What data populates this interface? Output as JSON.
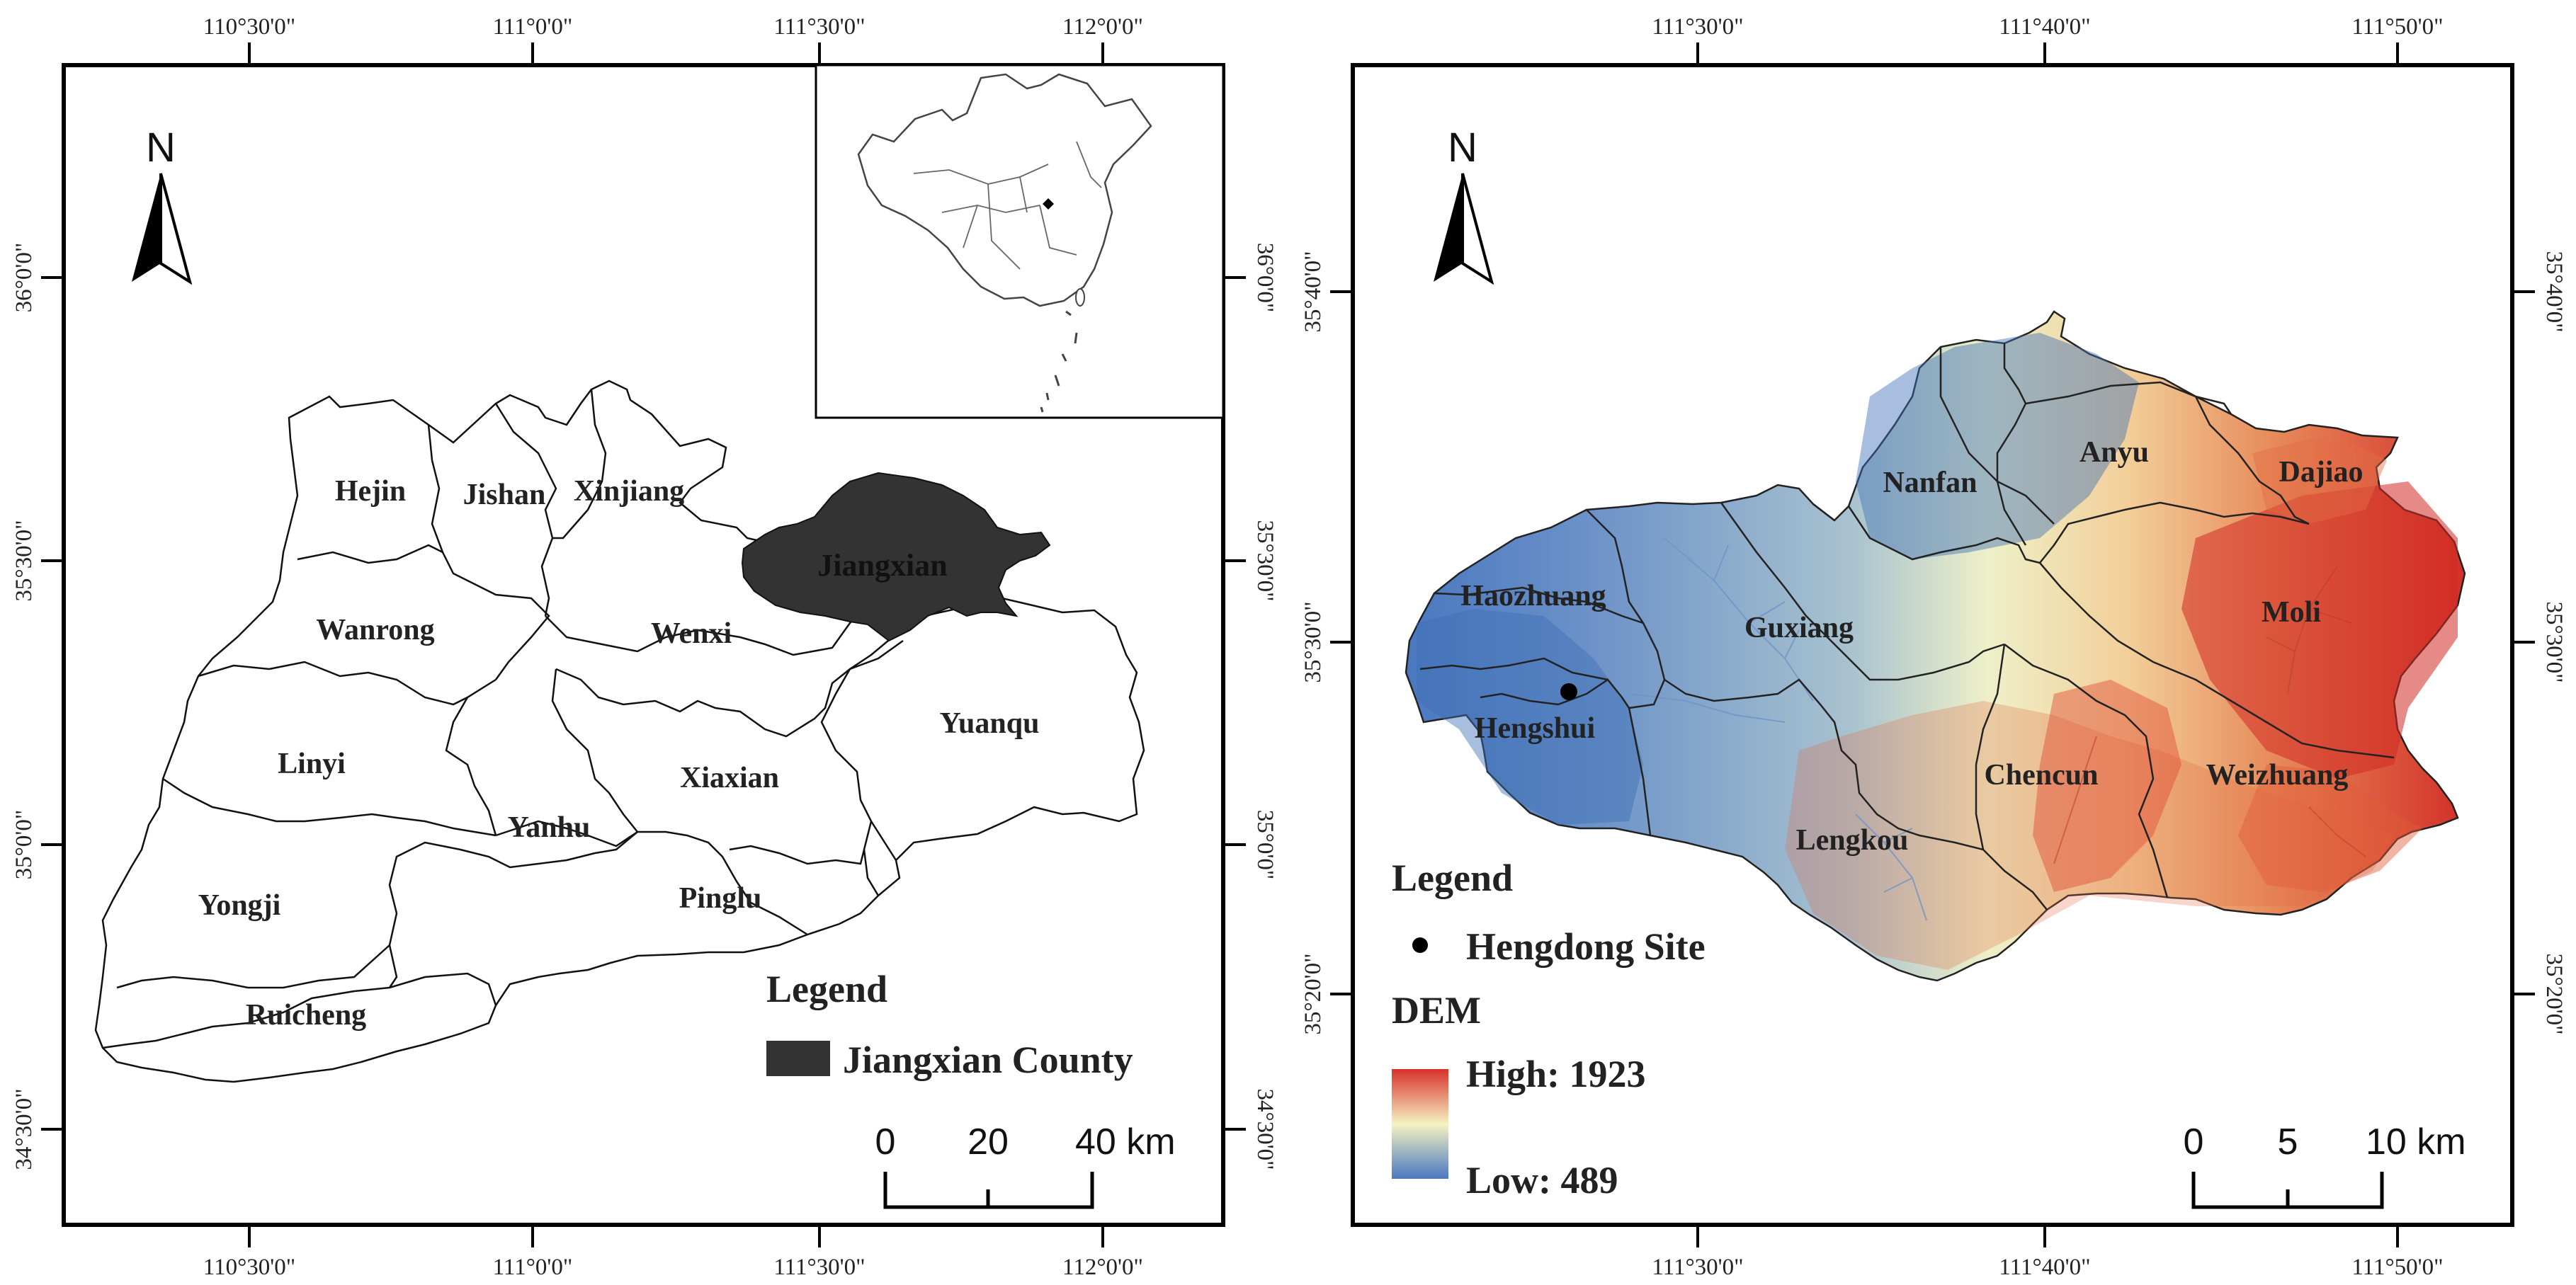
{
  "left_map": {
    "top_coords": [
      "110°30'0\"",
      "111°0'0\"",
      "111°30'0\"",
      "112°0'0\""
    ],
    "bottom_coords": [
      "110°30'0\"",
      "111°0'0\"",
      "111°30'0\"",
      "112°0'0\""
    ],
    "left_coords": [
      "36°0'0\"",
      "35°30'0\"",
      "35°0'0\"",
      "34°30'0\""
    ],
    "right_coords": [
      "36°0'0\"",
      "35°30'0\"",
      "35°0'0\"",
      "34°30'0\""
    ],
    "north": "N",
    "counties": [
      "Hejin",
      "Jishan",
      "Xinjiang",
      "Jiangxian",
      "Wanrong",
      "Wenxi",
      "Yuanqu",
      "Linyi",
      "Xiaxian",
      "Yanhu",
      "Yongji",
      "Pinglu",
      "Ruicheng"
    ],
    "legend_title": "Legend",
    "legend_item": "Jiangxian County",
    "legend_color": "#333333",
    "scale_labels": [
      "0",
      "20",
      "40 km"
    ]
  },
  "right_map": {
    "top_coords": [
      "111°30'0\"",
      "111°40'0\"",
      "111°50'0\""
    ],
    "bottom_coords": [
      "111°30'0\"",
      "111°40'0\"",
      "111°50'0\""
    ],
    "left_coords": [
      "35°40'0\"",
      "35°30'0\"",
      "35°20'0\""
    ],
    "right_coords": [
      "35°40'0\"",
      "35°30'0\"",
      "35°20'0\""
    ],
    "north": "N",
    "towns": [
      "Nanfan",
      "Anyu",
      "Dajiao",
      "Haozhuang",
      "Guxiang",
      "Moli",
      "Hengshui",
      "Chencun",
      "Weizhuang",
      "Lengkou"
    ],
    "legend_title": "Legend",
    "site_label": "Hengdong Site",
    "dem_title": "DEM",
    "dem_high": "High: 1923",
    "dem_low": "Low: 489",
    "dem_colors": {
      "high": "#d7312b",
      "mid": "#f6f3c2",
      "low": "#4a78c0"
    },
    "scale_labels": [
      "0",
      "5",
      "10 km"
    ]
  }
}
